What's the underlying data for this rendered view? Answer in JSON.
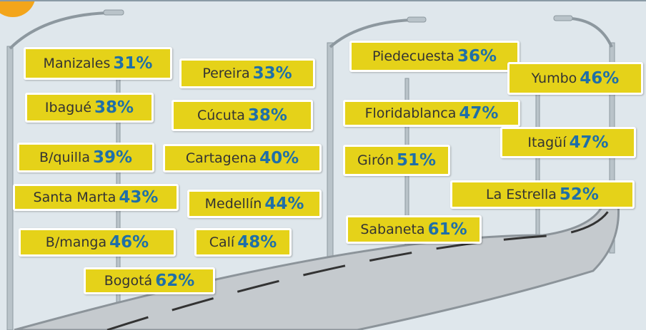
{
  "signs": [
    {
      "city": "Manizales",
      "value": "31%"
    },
    {
      "city": "Pereira",
      "value": "33%"
    },
    {
      "city": "Ibagué",
      "value": "38%"
    },
    {
      "city": "Cúcuta",
      "value": "38%"
    },
    {
      "city": "B/quilla",
      "value": "39%"
    },
    {
      "city": "Cartagena",
      "value": "40%"
    },
    {
      "city": "Santa Marta",
      "value": "43%"
    },
    {
      "city": "Medellín",
      "value": "44%"
    },
    {
      "city": "B/manga",
      "value": "46%"
    },
    {
      "city": "Calí",
      "value": "48%"
    },
    {
      "city": "Bogotá",
      "value": "62%"
    },
    {
      "city": "Piedecuesta",
      "value": "36%"
    },
    {
      "city": "Yumbo",
      "value": "46%"
    },
    {
      "city": "Floridablanca",
      "value": "47%"
    },
    {
      "city": "Itagüí",
      "value": "47%"
    },
    {
      "city": "Girón",
      "value": "51%"
    },
    {
      "city": "La Estrella",
      "value": "52%"
    },
    {
      "city": "Sabaneta",
      "value": "61%"
    }
  ]
}
